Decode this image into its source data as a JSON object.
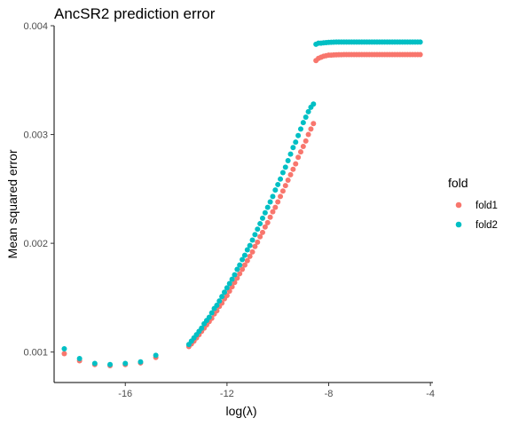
{
  "chart_data": {
    "type": "scatter",
    "title": "AncSR2 prediction error",
    "xlabel": "log(λ)",
    "ylabel": "Mean squared error",
    "xlim": [
      -18.8,
      -3.9
    ],
    "ylim": [
      0.00072,
      0.004
    ],
    "x_ticks": [
      -16,
      -12,
      -8,
      -4
    ],
    "y_ticks": [
      0.001,
      0.002,
      0.003,
      0.004
    ],
    "x_tick_labels": [
      "-16",
      "-12",
      "-8",
      "-4"
    ],
    "y_tick_labels": [
      "0.001",
      "0.002",
      "0.003",
      "0.004"
    ],
    "grid": false,
    "legend": {
      "title": "fold",
      "position": "right"
    },
    "series": [
      {
        "name": "fold1",
        "color": "#F8766D",
        "points": [
          [
            -18.4,
            0.000985
          ],
          [
            -17.8,
            0.00092
          ],
          [
            -17.2,
            0.000885
          ],
          [
            -16.6,
            0.000875
          ],
          [
            -16.0,
            0.000885
          ],
          [
            -15.4,
            0.0009
          ],
          [
            -14.8,
            0.00095
          ],
          [
            -13.5,
            0.00105
          ],
          [
            -13.4,
            0.001075
          ],
          [
            -13.3,
            0.0011
          ],
          [
            -13.2,
            0.00113
          ],
          [
            -13.1,
            0.00116
          ],
          [
            -13.0,
            0.00119
          ],
          [
            -12.9,
            0.00122
          ],
          [
            -12.8,
            0.00125
          ],
          [
            -12.7,
            0.00128
          ],
          [
            -12.6,
            0.00131
          ],
          [
            -12.5,
            0.00135
          ],
          [
            -12.4,
            0.00138
          ],
          [
            -12.3,
            0.00142
          ],
          [
            -12.2,
            0.00145
          ],
          [
            -12.1,
            0.00149
          ],
          [
            -12.0,
            0.00152
          ],
          [
            -11.9,
            0.00156
          ],
          [
            -11.8,
            0.0016
          ],
          [
            -11.7,
            0.00164
          ],
          [
            -11.6,
            0.00168
          ],
          [
            -11.5,
            0.00172
          ],
          [
            -11.4,
            0.00176
          ],
          [
            -11.3,
            0.0018
          ],
          [
            -11.2,
            0.00184
          ],
          [
            -11.1,
            0.00188
          ],
          [
            -11.0,
            0.00192
          ],
          [
            -10.9,
            0.00197
          ],
          [
            -10.8,
            0.00201
          ],
          [
            -10.7,
            0.00206
          ],
          [
            -10.6,
            0.0021
          ],
          [
            -10.5,
            0.00215
          ],
          [
            -10.4,
            0.00219
          ],
          [
            -10.3,
            0.00224
          ],
          [
            -10.2,
            0.00229
          ],
          [
            -10.1,
            0.00233
          ],
          [
            -10.0,
            0.00238
          ],
          [
            -9.9,
            0.00243
          ],
          [
            -9.8,
            0.00248
          ],
          [
            -9.7,
            0.00253
          ],
          [
            -9.6,
            0.00258
          ],
          [
            -9.5,
            0.00263
          ],
          [
            -9.4,
            0.00268
          ],
          [
            -9.3,
            0.00273
          ],
          [
            -9.2,
            0.00279
          ],
          [
            -9.1,
            0.00284
          ],
          [
            -9.0,
            0.00289
          ],
          [
            -8.9,
            0.00294
          ],
          [
            -8.8,
            0.003
          ],
          [
            -8.7,
            0.00305
          ],
          [
            -8.6,
            0.0031
          ],
          [
            -8.5,
            0.00368
          ],
          [
            -8.4,
            0.0037
          ],
          [
            -8.3,
            0.00371
          ],
          [
            -8.2,
            0.00372
          ],
          [
            -8.1,
            0.003725
          ],
          [
            -8.0,
            0.00373
          ],
          [
            -7.9,
            0.00373
          ],
          [
            -7.8,
            0.003732
          ],
          [
            -7.7,
            0.003733
          ],
          [
            -7.6,
            0.003734
          ],
          [
            -7.5,
            0.003734
          ],
          [
            -7.4,
            0.003735
          ],
          [
            -7.3,
            0.003735
          ],
          [
            -7.2,
            0.003735
          ],
          [
            -7.1,
            0.003735
          ],
          [
            -7.0,
            0.003735
          ],
          [
            -6.9,
            0.003735
          ],
          [
            -6.8,
            0.003735
          ],
          [
            -6.7,
            0.003735
          ],
          [
            -6.6,
            0.003735
          ],
          [
            -6.5,
            0.003735
          ],
          [
            -6.4,
            0.003735
          ],
          [
            -6.3,
            0.003735
          ],
          [
            -6.2,
            0.003735
          ],
          [
            -6.1,
            0.003735
          ],
          [
            -6.0,
            0.003735
          ],
          [
            -5.9,
            0.003735
          ],
          [
            -5.8,
            0.003735
          ],
          [
            -5.7,
            0.003735
          ],
          [
            -5.6,
            0.003735
          ],
          [
            -5.5,
            0.003735
          ],
          [
            -5.4,
            0.003735
          ],
          [
            -5.3,
            0.003735
          ],
          [
            -5.2,
            0.003735
          ],
          [
            -5.1,
            0.003735
          ],
          [
            -5.0,
            0.003735
          ],
          [
            -4.9,
            0.003735
          ],
          [
            -4.8,
            0.003735
          ],
          [
            -4.7,
            0.003735
          ],
          [
            -4.6,
            0.003735
          ],
          [
            -4.5,
            0.003735
          ],
          [
            -4.4,
            0.003735
          ]
        ]
      },
      {
        "name": "fold2",
        "color": "#00BFC4",
        "points": [
          [
            -18.4,
            0.00103
          ],
          [
            -17.8,
            0.00094
          ],
          [
            -17.2,
            0.000895
          ],
          [
            -16.6,
            0.000885
          ],
          [
            -16.0,
            0.000895
          ],
          [
            -15.4,
            0.00091
          ],
          [
            -14.8,
            0.00097
          ],
          [
            -13.5,
            0.00107
          ],
          [
            -13.4,
            0.0011
          ],
          [
            -13.3,
            0.00113
          ],
          [
            -13.2,
            0.00116
          ],
          [
            -13.1,
            0.00119
          ],
          [
            -13.0,
            0.00122
          ],
          [
            -12.9,
            0.00126
          ],
          [
            -12.8,
            0.00129
          ],
          [
            -12.7,
            0.00132
          ],
          [
            -12.6,
            0.00136
          ],
          [
            -12.5,
            0.0014
          ],
          [
            -12.4,
            0.00143
          ],
          [
            -12.3,
            0.00147
          ],
          [
            -12.2,
            0.00151
          ],
          [
            -12.1,
            0.00155
          ],
          [
            -12.0,
            0.00159
          ],
          [
            -11.9,
            0.00163
          ],
          [
            -11.8,
            0.00167
          ],
          [
            -11.7,
            0.00171
          ],
          [
            -11.6,
            0.00176
          ],
          [
            -11.5,
            0.0018
          ],
          [
            -11.4,
            0.00185
          ],
          [
            -11.3,
            0.00189
          ],
          [
            -11.2,
            0.00194
          ],
          [
            -11.1,
            0.00198
          ],
          [
            -11.0,
            0.00203
          ],
          [
            -10.9,
            0.00208
          ],
          [
            -10.8,
            0.00213
          ],
          [
            -10.7,
            0.00218
          ],
          [
            -10.6,
            0.00223
          ],
          [
            -10.5,
            0.00228
          ],
          [
            -10.4,
            0.00233
          ],
          [
            -10.3,
            0.00238
          ],
          [
            -10.2,
            0.00243
          ],
          [
            -10.1,
            0.00249
          ],
          [
            -10.0,
            0.00254
          ],
          [
            -9.9,
            0.00259
          ],
          [
            -9.8,
            0.00265
          ],
          [
            -9.7,
            0.0027
          ],
          [
            -9.6,
            0.00276
          ],
          [
            -9.5,
            0.00282
          ],
          [
            -9.4,
            0.00288
          ],
          [
            -9.3,
            0.00293
          ],
          [
            -9.2,
            0.00299
          ],
          [
            -9.1,
            0.00305
          ],
          [
            -9.0,
            0.00311
          ],
          [
            -8.9,
            0.00316
          ],
          [
            -8.8,
            0.00321
          ],
          [
            -8.7,
            0.00325
          ],
          [
            -8.6,
            0.00328
          ],
          [
            -8.5,
            0.00383
          ],
          [
            -8.4,
            0.00384
          ],
          [
            -8.3,
            0.00384
          ],
          [
            -8.2,
            0.003843
          ],
          [
            -8.1,
            0.003845
          ],
          [
            -8.0,
            0.003847
          ],
          [
            -7.9,
            0.003848
          ],
          [
            -7.8,
            0.003849
          ],
          [
            -7.7,
            0.00385
          ],
          [
            -7.6,
            0.00385
          ],
          [
            -7.5,
            0.00385
          ],
          [
            -7.4,
            0.00385
          ],
          [
            -7.3,
            0.00385
          ],
          [
            -7.2,
            0.00385
          ],
          [
            -7.1,
            0.00385
          ],
          [
            -7.0,
            0.00385
          ],
          [
            -6.9,
            0.00385
          ],
          [
            -6.8,
            0.00385
          ],
          [
            -6.7,
            0.00385
          ],
          [
            -6.6,
            0.00385
          ],
          [
            -6.5,
            0.00385
          ],
          [
            -6.4,
            0.00385
          ],
          [
            -6.3,
            0.00385
          ],
          [
            -6.2,
            0.00385
          ],
          [
            -6.1,
            0.00385
          ],
          [
            -6.0,
            0.00385
          ],
          [
            -5.9,
            0.00385
          ],
          [
            -5.8,
            0.00385
          ],
          [
            -5.7,
            0.00385
          ],
          [
            -5.6,
            0.00385
          ],
          [
            -5.5,
            0.00385
          ],
          [
            -5.4,
            0.00385
          ],
          [
            -5.3,
            0.00385
          ],
          [
            -5.2,
            0.00385
          ],
          [
            -5.1,
            0.00385
          ],
          [
            -5.0,
            0.00385
          ],
          [
            -4.9,
            0.00385
          ],
          [
            -4.8,
            0.00385
          ],
          [
            -4.7,
            0.00385
          ],
          [
            -4.6,
            0.00385
          ],
          [
            -4.5,
            0.00385
          ],
          [
            -4.4,
            0.00385
          ]
        ]
      }
    ]
  }
}
